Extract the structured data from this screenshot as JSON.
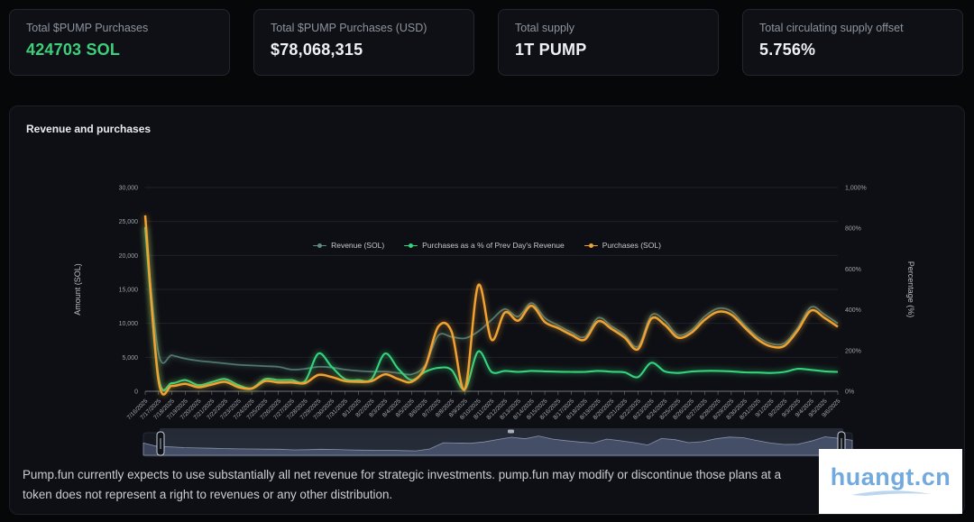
{
  "cards": [
    {
      "label": "Total $PUMP Purchases",
      "value": "424703 SOL",
      "value_color": "#3ecf7a"
    },
    {
      "label": "Total $PUMP Purchases (USD)",
      "value": "$78,068,315",
      "value_color": "#eef0f3"
    },
    {
      "label": "Total supply",
      "value": "1T PUMP",
      "value_color": "#eef0f3"
    },
    {
      "label": "Total circulating supply offset",
      "value": "5.756%",
      "value_color": "#eef0f3"
    }
  ],
  "panel": {
    "title": "Revenue and purchases"
  },
  "footer": {
    "line1": "Pump.fun currently expects to use substantially all net revenue for strategic investments. pump.fun may modify or discontinue those plans at a",
    "line2": "token does not represent a right to revenues or any other distribution."
  },
  "watermark": {
    "text": "huangt.cn",
    "accent": "#72aade"
  },
  "chart_data": {
    "type": "line",
    "title": "Revenue and purchases",
    "grid": true,
    "legend_position": "top",
    "x": [
      "7/16/2025",
      "7/17/2025",
      "7/18/2025",
      "7/19/2025",
      "7/20/2025",
      "7/21/2025",
      "7/22/2025",
      "7/23/2025",
      "7/24/2025",
      "7/25/2025",
      "7/26/2025",
      "7/27/2025",
      "7/28/2025",
      "7/29/2025",
      "7/30/2025",
      "7/31/2025",
      "8/1/2025",
      "8/2/2025",
      "8/3/2025",
      "8/4/2025",
      "8/5/2025",
      "8/6/2025",
      "8/7/2025",
      "8/8/2025",
      "8/9/2025",
      "8/10/2025",
      "8/11/2025",
      "8/12/2025",
      "8/13/2025",
      "8/14/2025",
      "8/15/2025",
      "8/16/2025",
      "8/17/2025",
      "8/18/2025",
      "8/19/2025",
      "8/20/2025",
      "8/21/2025",
      "8/22/2025",
      "8/23/2025",
      "8/24/2025",
      "8/25/2025",
      "8/26/2025",
      "8/27/2025",
      "8/28/2025",
      "8/29/2025",
      "8/30/2025",
      "8/31/2025",
      "9/1/2025",
      "9/2/2025",
      "9/3/2025",
      "9/4/2025",
      "9/5/2025",
      "9/6/2025"
    ],
    "left_axis": {
      "label": "Amount (SOL)",
      "min": 0,
      "max": 30000,
      "ticks": [
        "0",
        "5,000",
        "10,000",
        "15,000",
        "20,000",
        "25,000",
        "30,000"
      ]
    },
    "right_axis": {
      "label": "Percentage (%)",
      "min": 0,
      "max": 1000,
      "ticks": [
        "0%",
        "200%",
        "400%",
        "600%",
        "800%",
        "1,000%"
      ]
    },
    "series": [
      {
        "name": "Revenue (SOL)",
        "axis": "left",
        "color": "#5d8d80",
        "width": 1.8,
        "opacity": 0.8,
        "values": [
          24200,
          5600,
          5300,
          4800,
          4500,
          4300,
          4100,
          3900,
          3800,
          3700,
          3600,
          3200,
          3300,
          3600,
          3500,
          3200,
          3000,
          2900,
          2900,
          2700,
          2500,
          3800,
          8200,
          8000,
          7800,
          8800,
          10500,
          12100,
          11000,
          13000,
          10800,
          9700,
          8700,
          8000,
          10800,
          9600,
          8300,
          6600,
          11200,
          10400,
          8300,
          9000,
          11000,
          12200,
          11800,
          9800,
          8000,
          7000,
          7100,
          9400,
          12400,
          11300,
          10000
        ]
      },
      {
        "name": "Purchases as a % of Prev Day's Revenue",
        "axis": "right",
        "color": "#34d47d",
        "width": 2.1,
        "opacity": 1,
        "values": [
          805,
          70,
          40,
          55,
          30,
          45,
          60,
          30,
          15,
          60,
          55,
          55,
          50,
          185,
          120,
          60,
          55,
          60,
          185,
          110,
          55,
          95,
          115,
          105,
          10,
          195,
          95,
          100,
          95,
          100,
          98,
          96,
          95,
          95,
          100,
          96,
          93,
          70,
          140,
          98,
          90,
          97,
          100,
          100,
          98,
          93,
          92,
          90,
          95,
          110,
          105,
          98,
          95
        ]
      },
      {
        "name": "Purchases (SOL)",
        "axis": "left",
        "color": "#f0a232",
        "width": 2.5,
        "opacity": 1,
        "values": [
          25900,
          1600,
          800,
          1100,
          600,
          1000,
          1400,
          600,
          400,
          1500,
          1300,
          1300,
          1200,
          2400,
          2100,
          1500,
          1400,
          1500,
          2500,
          1800,
          1400,
          3500,
          9500,
          8800,
          300,
          15600,
          7600,
          11600,
          10400,
          12600,
          10200,
          9300,
          8300,
          7600,
          10300,
          9200,
          7900,
          6200,
          10700,
          9800,
          7900,
          8600,
          10500,
          11700,
          11300,
          9400,
          7600,
          6600,
          6700,
          9000,
          11900,
          10800,
          9500
        ]
      }
    ]
  }
}
